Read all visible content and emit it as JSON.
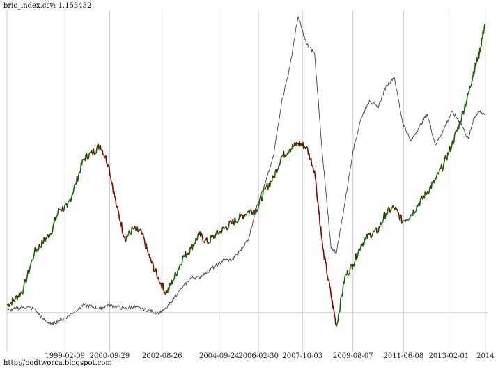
{
  "chart_data": {
    "type": "line",
    "title": "bric_index.csv: 1.153432",
    "xlabel": "",
    "ylabel": "",
    "x_tick_labels": [
      "1999-02-09",
      "2000-09-29",
      "2002-08-26",
      "2004-09-24",
      "2006-02-30",
      "2007-10-03",
      "2009-08-07",
      "2011-06-08",
      "2013-02-01",
      "2014"
    ],
    "x_tick_positions": [
      1999.11,
      2000.74,
      2002.65,
      2004.73,
      2006.16,
      2007.76,
      2009.6,
      2011.44,
      2013.09,
      2014.42
    ],
    "xlim": [
      1997.0,
      2014.5
    ],
    "ylim": [
      0.4,
      2.15
    ],
    "reference_line": 0.6,
    "grid": {
      "vertical": true,
      "horizontal": false
    },
    "series": [
      {
        "style": "candlestick-line",
        "color_up": "#007000",
        "color_down": "#8b0000",
        "x": [
          1997.0,
          1997.3,
          1997.6,
          1998.0,
          1998.3,
          1998.6,
          1998.9,
          1999.2,
          1999.5,
          1999.8,
          2000.1,
          2000.4,
          2000.7,
          2001.0,
          2001.3,
          2001.6,
          2001.9,
          2002.2,
          2002.5,
          2002.8,
          2003.1,
          2003.4,
          2003.7,
          2004.0,
          2004.3,
          2004.6,
          2004.9,
          2005.2,
          2005.5,
          2005.8,
          2006.1,
          2006.4,
          2006.7,
          2007.0,
          2007.3,
          2007.6,
          2007.9,
          2008.2,
          2008.5,
          2008.8,
          2009.0,
          2009.3,
          2009.6,
          2009.9,
          2010.2,
          2010.5,
          2010.8,
          2011.1,
          2011.4,
          2011.7,
          2012.0,
          2012.3,
          2012.6,
          2012.9,
          2013.2,
          2013.5,
          2013.8,
          2014.0,
          2014.2,
          2014.4
        ],
        "values": [
          0.64,
          0.67,
          0.72,
          0.91,
          0.96,
          1.01,
          1.13,
          1.14,
          1.26,
          1.39,
          1.42,
          1.46,
          1.36,
          1.14,
          0.98,
          1.03,
          1.01,
          0.88,
          0.78,
          0.7,
          0.78,
          0.88,
          0.93,
          1.0,
          0.96,
          1.0,
          1.03,
          1.06,
          1.09,
          1.12,
          1.13,
          1.23,
          1.29,
          1.4,
          1.44,
          1.47,
          1.45,
          1.33,
          0.93,
          0.69,
          0.53,
          0.78,
          0.85,
          0.95,
          1.0,
          1.02,
          1.11,
          1.14,
          1.07,
          1.1,
          1.16,
          1.22,
          1.28,
          1.36,
          1.46,
          1.58,
          1.72,
          1.84,
          1.93,
          2.08
        ]
      },
      {
        "style": "line",
        "color": "#444444",
        "x": [
          1997.0,
          1997.3,
          1997.6,
          1998.0,
          1998.3,
          1998.6,
          1998.9,
          1999.2,
          1999.5,
          1999.8,
          2000.1,
          2000.4,
          2000.7,
          2001.0,
          2001.3,
          2001.6,
          2001.9,
          2002.2,
          2002.5,
          2002.8,
          2003.1,
          2003.4,
          2003.7,
          2004.0,
          2004.3,
          2004.6,
          2004.9,
          2005.2,
          2005.5,
          2005.8,
          2006.1,
          2006.4,
          2006.7,
          2007.0,
          2007.3,
          2007.6,
          2007.9,
          2008.2,
          2008.5,
          2008.8,
          2009.0,
          2009.3,
          2009.6,
          2009.9,
          2010.2,
          2010.5,
          2010.8,
          2011.1,
          2011.4,
          2011.7,
          2012.0,
          2012.3,
          2012.6,
          2012.9,
          2013.2,
          2013.5,
          2013.8,
          2014.0,
          2014.2,
          2014.4
        ],
        "values": [
          0.61,
          0.62,
          0.63,
          0.62,
          0.57,
          0.54,
          0.56,
          0.58,
          0.61,
          0.64,
          0.63,
          0.62,
          0.64,
          0.63,
          0.62,
          0.63,
          0.62,
          0.61,
          0.6,
          0.62,
          0.68,
          0.73,
          0.78,
          0.78,
          0.81,
          0.84,
          0.87,
          0.87,
          0.92,
          0.98,
          1.15,
          1.26,
          1.4,
          1.68,
          1.86,
          2.12,
          1.98,
          1.93,
          1.39,
          0.93,
          0.91,
          1.16,
          1.43,
          1.6,
          1.69,
          1.65,
          1.76,
          1.81,
          1.58,
          1.48,
          1.55,
          1.62,
          1.46,
          1.54,
          1.63,
          1.58,
          1.49,
          1.6,
          1.63,
          1.62
        ]
      }
    ]
  },
  "footer": {
    "credit": "http://podtworca.blogspot.com"
  }
}
